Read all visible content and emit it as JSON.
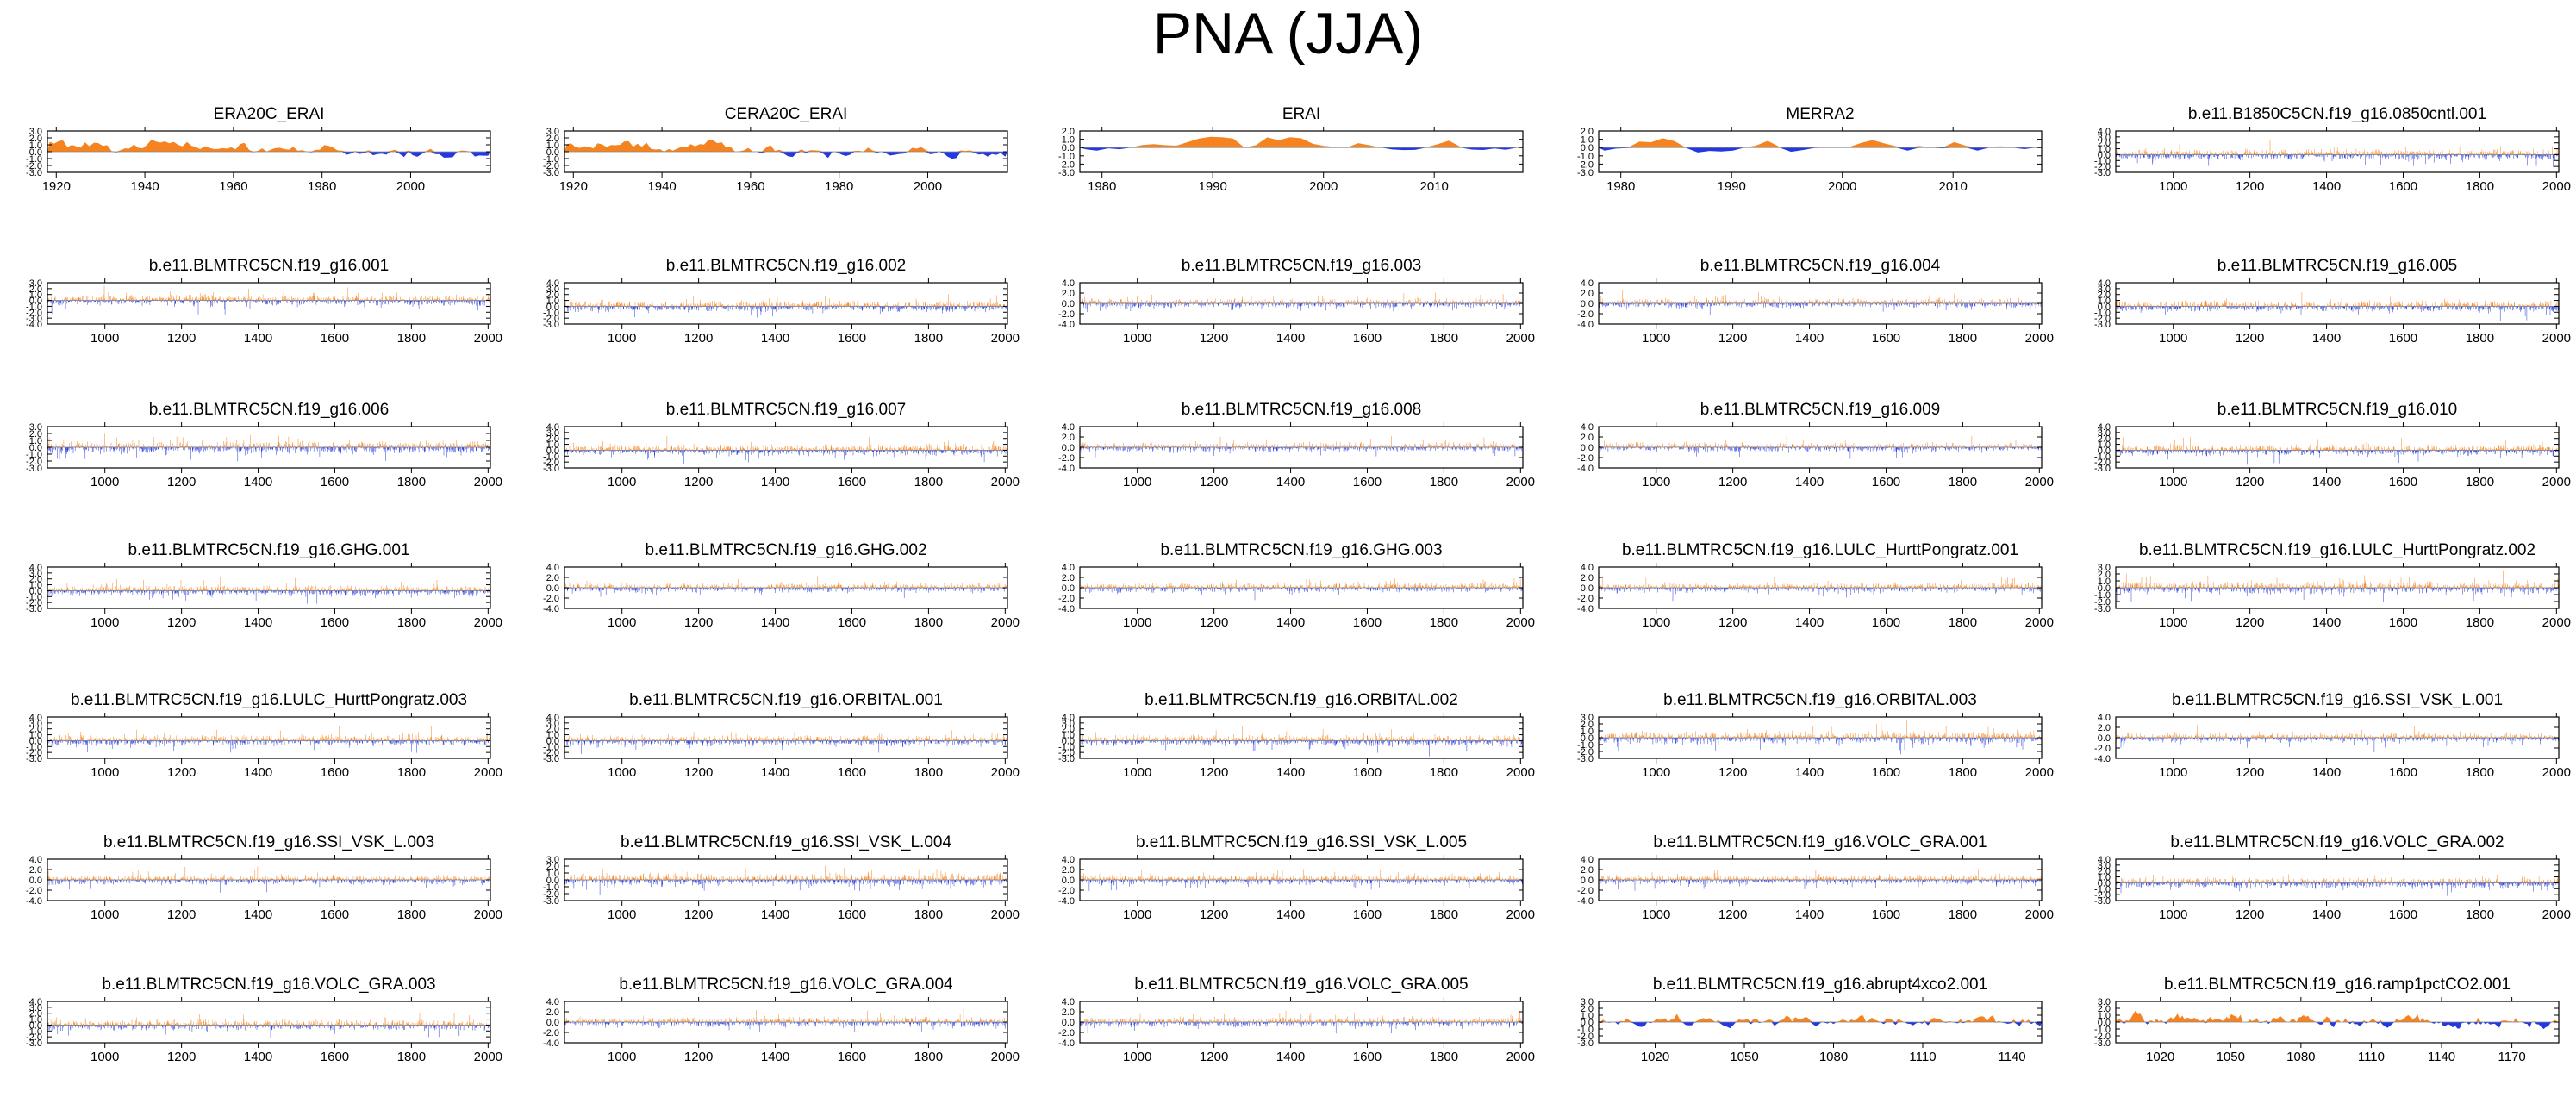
{
  "title": "PNA (JJA)",
  "colors": {
    "positive": "#f5831f",
    "negative": "#2338e0",
    "axis": "#000000",
    "zero_line": "#888888"
  },
  "chart_data": [
    {
      "type": "area",
      "title": "ERA20C_ERAI",
      "xlim": [
        1918,
        2018
      ],
      "ylim": [
        -3,
        3
      ],
      "yticks": [
        "3.0",
        "2.0",
        "1.0",
        "0.0",
        "-1.0",
        "-2.0",
        "-3.0"
      ],
      "xticks": [
        "1920",
        "1940",
        "1960",
        "1980",
        "2000"
      ],
      "n": 100,
      "seed": 101,
      "amp": 1.0,
      "style": "smooth",
      "trend": 1.3
    },
    {
      "type": "area",
      "title": "CERA20C_ERAI",
      "xlim": [
        1918,
        2018
      ],
      "ylim": [
        -3,
        3
      ],
      "yticks": [
        "3.0",
        "2.0",
        "1.0",
        "0.0",
        "-1.0",
        "-2.0",
        "-3.0"
      ],
      "xticks": [
        "1920",
        "1940",
        "1960",
        "1980",
        "2000"
      ],
      "n": 100,
      "seed": 102,
      "amp": 1.0,
      "style": "smooth",
      "trend": 1.1
    },
    {
      "type": "area",
      "title": "ERAI",
      "xlim": [
        1978,
        2018
      ],
      "ylim": [
        -3,
        2
      ],
      "yticks": [
        "2.0",
        "1.0",
        "0.0",
        "-1.0",
        "-2.0",
        "-3.0"
      ],
      "xticks": [
        "1980",
        "1990",
        "2000",
        "2010"
      ],
      "n": 39,
      "seed": 103,
      "amp": 1.1,
      "style": "smooth",
      "trend": 0
    },
    {
      "type": "area",
      "title": "MERRA2",
      "xlim": [
        1978,
        2018
      ],
      "ylim": [
        -3,
        2
      ],
      "yticks": [
        "2.0",
        "1.0",
        "0.0",
        "-1.0",
        "-2.0",
        "-3.0"
      ],
      "xticks": [
        "1980",
        "1990",
        "2000",
        "2010"
      ],
      "n": 38,
      "seed": 104,
      "amp": 1.1,
      "style": "smooth",
      "trend": 0
    },
    {
      "type": "area",
      "title": "b.e11.B1850C5CN.f19_g16.0850cntl.001",
      "xlim": [
        850,
        2006
      ],
      "ylim": [
        -3,
        4
      ],
      "yticks": [
        "4.0",
        "3.0",
        "2.0",
        "1.0",
        "0.0",
        "-1.0",
        "-2.0",
        "-3.0"
      ],
      "xticks": [
        "1000",
        "1200",
        "1400",
        "1600",
        "1800",
        "2000"
      ],
      "n": 1156,
      "seed": 105,
      "amp": 1.0,
      "style": "spiky",
      "trend": 0
    },
    {
      "type": "area",
      "title": "b.e11.BLMTRC5CN.f19_g16.001",
      "xlim": [
        850,
        2006
      ],
      "ylim": [
        -4,
        3
      ],
      "yticks": [
        "3.0",
        "2.0",
        "1.0",
        "0.0",
        "-1.0",
        "-2.0",
        "-3.0",
        "-4.0"
      ],
      "xticks": [
        "1000",
        "1200",
        "1400",
        "1600",
        "1800",
        "2000"
      ],
      "n": 1156,
      "seed": 106,
      "amp": 1.0,
      "style": "spiky",
      "trend": 0
    },
    {
      "type": "area",
      "title": "b.e11.BLMTRC5CN.f19_g16.002",
      "xlim": [
        850,
        2006
      ],
      "ylim": [
        -3,
        4
      ],
      "yticks": [
        "4.0",
        "3.0",
        "2.0",
        "1.0",
        "0.0",
        "-1.0",
        "-2.0",
        "-3.0"
      ],
      "xticks": [
        "1000",
        "1200",
        "1400",
        "1600",
        "1800",
        "2000"
      ],
      "n": 1156,
      "seed": 107,
      "amp": 1.0,
      "style": "spiky",
      "trend": 0
    },
    {
      "type": "area",
      "title": "b.e11.BLMTRC5CN.f19_g16.003",
      "xlim": [
        850,
        2006
      ],
      "ylim": [
        -4,
        4
      ],
      "yticks": [
        "4.0",
        "2.0",
        "0.0",
        "-2.0",
        "-4.0"
      ],
      "xticks": [
        "1000",
        "1200",
        "1400",
        "1600",
        "1800",
        "2000"
      ],
      "n": 1156,
      "seed": 108,
      "amp": 1.0,
      "style": "spiky",
      "trend": 0
    },
    {
      "type": "area",
      "title": "b.e11.BLMTRC5CN.f19_g16.004",
      "xlim": [
        850,
        2006
      ],
      "ylim": [
        -4,
        4
      ],
      "yticks": [
        "4.0",
        "2.0",
        "0.0",
        "-2.0",
        "-4.0"
      ],
      "xticks": [
        "1000",
        "1200",
        "1400",
        "1600",
        "1800",
        "2000"
      ],
      "n": 1156,
      "seed": 109,
      "amp": 1.0,
      "style": "spiky",
      "trend": 0
    },
    {
      "type": "area",
      "title": "b.e11.BLMTRC5CN.f19_g16.005",
      "xlim": [
        850,
        2006
      ],
      "ylim": [
        -3,
        4
      ],
      "yticks": [
        "4.0",
        "3.0",
        "2.0",
        "1.0",
        "0.0",
        "-1.0",
        "-2.0",
        "-3.0"
      ],
      "xticks": [
        "1000",
        "1200",
        "1400",
        "1600",
        "1800",
        "2000"
      ],
      "n": 1156,
      "seed": 110,
      "amp": 1.0,
      "style": "spiky",
      "trend": 0
    },
    {
      "type": "area",
      "title": "b.e11.BLMTRC5CN.f19_g16.006",
      "xlim": [
        850,
        2006
      ],
      "ylim": [
        -3,
        3
      ],
      "yticks": [
        "3.0",
        "2.0",
        "1.0",
        "0.0",
        "-1.0",
        "-2.0",
        "-3.0"
      ],
      "xticks": [
        "1000",
        "1200",
        "1400",
        "1600",
        "1800",
        "2000"
      ],
      "n": 1156,
      "seed": 111,
      "amp": 1.0,
      "style": "spiky",
      "trend": 0
    },
    {
      "type": "area",
      "title": "b.e11.BLMTRC5CN.f19_g16.007",
      "xlim": [
        850,
        2006
      ],
      "ylim": [
        -3,
        4
      ],
      "yticks": [
        "4.0",
        "3.0",
        "2.0",
        "1.0",
        "0.0",
        "-1.0",
        "-2.0",
        "-3.0"
      ],
      "xticks": [
        "1000",
        "1200",
        "1400",
        "1600",
        "1800",
        "2000"
      ],
      "n": 1156,
      "seed": 112,
      "amp": 1.0,
      "style": "spiky",
      "trend": 0
    },
    {
      "type": "area",
      "title": "b.e11.BLMTRC5CN.f19_g16.008",
      "xlim": [
        850,
        2006
      ],
      "ylim": [
        -4,
        4
      ],
      "yticks": [
        "4.0",
        "2.0",
        "0.0",
        "-2.0",
        "-4.0"
      ],
      "xticks": [
        "1000",
        "1200",
        "1400",
        "1600",
        "1800",
        "2000"
      ],
      "n": 1156,
      "seed": 113,
      "amp": 1.0,
      "style": "spiky",
      "trend": 0
    },
    {
      "type": "area",
      "title": "b.e11.BLMTRC5CN.f19_g16.009",
      "xlim": [
        850,
        2006
      ],
      "ylim": [
        -4,
        4
      ],
      "yticks": [
        "4.0",
        "2.0",
        "0.0",
        "-2.0",
        "-4.0"
      ],
      "xticks": [
        "1000",
        "1200",
        "1400",
        "1600",
        "1800",
        "2000"
      ],
      "n": 1156,
      "seed": 114,
      "amp": 1.0,
      "style": "spiky",
      "trend": 0
    },
    {
      "type": "area",
      "title": "b.e11.BLMTRC5CN.f19_g16.010",
      "xlim": [
        850,
        2006
      ],
      "ylim": [
        -3,
        4
      ],
      "yticks": [
        "4.0",
        "3.0",
        "2.0",
        "1.0",
        "0.0",
        "-1.0",
        "-2.0",
        "-3.0"
      ],
      "xticks": [
        "1000",
        "1200",
        "1400",
        "1600",
        "1800",
        "2000"
      ],
      "n": 1156,
      "seed": 115,
      "amp": 1.0,
      "style": "spiky",
      "trend": 0
    },
    {
      "type": "area",
      "title": "b.e11.BLMTRC5CN.f19_g16.GHG.001",
      "xlim": [
        850,
        2006
      ],
      "ylim": [
        -3,
        4
      ],
      "yticks": [
        "4.0",
        "3.0",
        "2.0",
        "1.0",
        "0.0",
        "-1.0",
        "-2.0",
        "-3.0"
      ],
      "xticks": [
        "1000",
        "1200",
        "1400",
        "1600",
        "1800",
        "2000"
      ],
      "n": 1156,
      "seed": 116,
      "amp": 1.0,
      "style": "spiky",
      "trend": 0
    },
    {
      "type": "area",
      "title": "b.e11.BLMTRC5CN.f19_g16.GHG.002",
      "xlim": [
        850,
        2006
      ],
      "ylim": [
        -4,
        4
      ],
      "yticks": [
        "4.0",
        "2.0",
        "0.0",
        "-2.0",
        "-4.0"
      ],
      "xticks": [
        "1000",
        "1200",
        "1400",
        "1600",
        "1800",
        "2000"
      ],
      "n": 1156,
      "seed": 117,
      "amp": 1.0,
      "style": "spiky",
      "trend": 0
    },
    {
      "type": "area",
      "title": "b.e11.BLMTRC5CN.f19_g16.GHG.003",
      "xlim": [
        850,
        2006
      ],
      "ylim": [
        -4,
        4
      ],
      "yticks": [
        "4.0",
        "2.0",
        "0.0",
        "-2.0",
        "-4.0"
      ],
      "xticks": [
        "1000",
        "1200",
        "1400",
        "1600",
        "1800",
        "2000"
      ],
      "n": 1156,
      "seed": 118,
      "amp": 1.0,
      "style": "spiky",
      "trend": 0
    },
    {
      "type": "area",
      "title": "b.e11.BLMTRC5CN.f19_g16.LULC_HurttPongratz.001",
      "xlim": [
        850,
        2006
      ],
      "ylim": [
        -4,
        4
      ],
      "yticks": [
        "4.0",
        "2.0",
        "0.0",
        "-2.0",
        "-4.0"
      ],
      "xticks": [
        "1000",
        "1200",
        "1400",
        "1600",
        "1800",
        "2000"
      ],
      "n": 1156,
      "seed": 119,
      "amp": 1.0,
      "style": "spiky",
      "trend": 0
    },
    {
      "type": "area",
      "title": "b.e11.BLMTRC5CN.f19_g16.LULC_HurttPongratz.002",
      "xlim": [
        850,
        2006
      ],
      "ylim": [
        -3,
        3
      ],
      "yticks": [
        "3.0",
        "2.0",
        "1.0",
        "0.0",
        "-1.0",
        "-2.0",
        "-3.0"
      ],
      "xticks": [
        "1000",
        "1200",
        "1400",
        "1600",
        "1800",
        "2000"
      ],
      "n": 1156,
      "seed": 120,
      "amp": 1.0,
      "style": "spiky",
      "trend": 0
    },
    {
      "type": "area",
      "title": "b.e11.BLMTRC5CN.f19_g16.LULC_HurttPongratz.003",
      "xlim": [
        850,
        2006
      ],
      "ylim": [
        -3,
        4
      ],
      "yticks": [
        "4.0",
        "3.0",
        "2.0",
        "1.0",
        "0.0",
        "-1.0",
        "-2.0",
        "-3.0"
      ],
      "xticks": [
        "1000",
        "1200",
        "1400",
        "1600",
        "1800",
        "2000"
      ],
      "n": 1156,
      "seed": 121,
      "amp": 1.0,
      "style": "spiky",
      "trend": 0
    },
    {
      "type": "area",
      "title": "b.e11.BLMTRC5CN.f19_g16.ORBITAL.001",
      "xlim": [
        850,
        2006
      ],
      "ylim": [
        -3,
        4
      ],
      "yticks": [
        "4.0",
        "3.0",
        "2.0",
        "1.0",
        "0.0",
        "-1.0",
        "-2.0",
        "-3.0"
      ],
      "xticks": [
        "1000",
        "1200",
        "1400",
        "1600",
        "1800",
        "2000"
      ],
      "n": 1156,
      "seed": 122,
      "amp": 1.0,
      "style": "spiky",
      "trend": 0
    },
    {
      "type": "area",
      "title": "b.e11.BLMTRC5CN.f19_g16.ORBITAL.002",
      "xlim": [
        850,
        2006
      ],
      "ylim": [
        -3,
        4
      ],
      "yticks": [
        "4.0",
        "3.0",
        "2.0",
        "1.0",
        "0.0",
        "-1.0",
        "-2.0",
        "-3.0"
      ],
      "xticks": [
        "1000",
        "1200",
        "1400",
        "1600",
        "1800",
        "2000"
      ],
      "n": 1156,
      "seed": 123,
      "amp": 1.0,
      "style": "spiky",
      "trend": 0
    },
    {
      "type": "area",
      "title": "b.e11.BLMTRC5CN.f19_g16.ORBITAL.003",
      "xlim": [
        850,
        2006
      ],
      "ylim": [
        -3,
        3
      ],
      "yticks": [
        "3.0",
        "2.0",
        "1.0",
        "0.0",
        "-1.0",
        "-2.0",
        "-3.0"
      ],
      "xticks": [
        "1000",
        "1200",
        "1400",
        "1600",
        "1800",
        "2000"
      ],
      "n": 1156,
      "seed": 124,
      "amp": 1.0,
      "style": "spiky",
      "trend": 0
    },
    {
      "type": "area",
      "title": "b.e11.BLMTRC5CN.f19_g16.SSI_VSK_L.001",
      "xlim": [
        850,
        2006
      ],
      "ylim": [
        -4,
        4
      ],
      "yticks": [
        "4.0",
        "2.0",
        "0.0",
        "-2.0",
        "-4.0"
      ],
      "xticks": [
        "1000",
        "1200",
        "1400",
        "1600",
        "1800",
        "2000"
      ],
      "n": 1156,
      "seed": 125,
      "amp": 1.0,
      "style": "spiky",
      "trend": 0
    },
    {
      "type": "area",
      "title": "b.e11.BLMTRC5CN.f19_g16.SSI_VSK_L.003",
      "xlim": [
        850,
        2006
      ],
      "ylim": [
        -4,
        4
      ],
      "yticks": [
        "4.0",
        "2.0",
        "0.0",
        "-2.0",
        "-4.0"
      ],
      "xticks": [
        "1000",
        "1200",
        "1400",
        "1600",
        "1800",
        "2000"
      ],
      "n": 1156,
      "seed": 126,
      "amp": 1.0,
      "style": "spiky",
      "trend": 0
    },
    {
      "type": "area",
      "title": "b.e11.BLMTRC5CN.f19_g16.SSI_VSK_L.004",
      "xlim": [
        850,
        2006
      ],
      "ylim": [
        -3,
        3
      ],
      "yticks": [
        "3.0",
        "2.0",
        "1.0",
        "0.0",
        "-1.0",
        "-2.0",
        "-3.0"
      ],
      "xticks": [
        "1000",
        "1200",
        "1400",
        "1600",
        "1800",
        "2000"
      ],
      "n": 1156,
      "seed": 127,
      "amp": 1.0,
      "style": "spiky",
      "trend": 0
    },
    {
      "type": "area",
      "title": "b.e11.BLMTRC5CN.f19_g16.SSI_VSK_L.005",
      "xlim": [
        850,
        2006
      ],
      "ylim": [
        -4,
        4
      ],
      "yticks": [
        "4.0",
        "2.0",
        "0.0",
        "-2.0",
        "-4.0"
      ],
      "xticks": [
        "1000",
        "1200",
        "1400",
        "1600",
        "1800",
        "2000"
      ],
      "n": 1156,
      "seed": 128,
      "amp": 1.0,
      "style": "spiky",
      "trend": 0
    },
    {
      "type": "area",
      "title": "b.e11.BLMTRC5CN.f19_g16.VOLC_GRA.001",
      "xlim": [
        850,
        2006
      ],
      "ylim": [
        -4,
        4
      ],
      "yticks": [
        "4.0",
        "2.0",
        "0.0",
        "-2.0",
        "-4.0"
      ],
      "xticks": [
        "1000",
        "1200",
        "1400",
        "1600",
        "1800",
        "2000"
      ],
      "n": 1156,
      "seed": 129,
      "amp": 1.0,
      "style": "spiky",
      "trend": 0
    },
    {
      "type": "area",
      "title": "b.e11.BLMTRC5CN.f19_g16.VOLC_GRA.002",
      "xlim": [
        850,
        2006
      ],
      "ylim": [
        -3,
        4
      ],
      "yticks": [
        "4.0",
        "3.0",
        "2.0",
        "1.0",
        "0.0",
        "-1.0",
        "-2.0",
        "-3.0"
      ],
      "xticks": [
        "1000",
        "1200",
        "1400",
        "1600",
        "1800",
        "2000"
      ],
      "n": 1156,
      "seed": 130,
      "amp": 1.0,
      "style": "spiky",
      "trend": 0
    },
    {
      "type": "area",
      "title": "b.e11.BLMTRC5CN.f19_g16.VOLC_GRA.003",
      "xlim": [
        850,
        2006
      ],
      "ylim": [
        -3,
        4
      ],
      "yticks": [
        "4.0",
        "3.0",
        "2.0",
        "1.0",
        "0.0",
        "-1.0",
        "-2.0",
        "-3.0"
      ],
      "xticks": [
        "1000",
        "1200",
        "1400",
        "1600",
        "1800",
        "2000"
      ],
      "n": 1156,
      "seed": 131,
      "amp": 1.0,
      "style": "spiky",
      "trend": 0
    },
    {
      "type": "area",
      "title": "b.e11.BLMTRC5CN.f19_g16.VOLC_GRA.004",
      "xlim": [
        850,
        2006
      ],
      "ylim": [
        -4,
        4
      ],
      "yticks": [
        "4.0",
        "2.0",
        "0.0",
        "-2.0",
        "-4.0"
      ],
      "xticks": [
        "1000",
        "1200",
        "1400",
        "1600",
        "1800",
        "2000"
      ],
      "n": 1156,
      "seed": 132,
      "amp": 1.0,
      "style": "spiky",
      "trend": 0
    },
    {
      "type": "area",
      "title": "b.e11.BLMTRC5CN.f19_g16.VOLC_GRA.005",
      "xlim": [
        850,
        2006
      ],
      "ylim": [
        -4,
        4
      ],
      "yticks": [
        "4.0",
        "2.0",
        "0.0",
        "-2.0",
        "-4.0"
      ],
      "xticks": [
        "1000",
        "1200",
        "1400",
        "1600",
        "1800",
        "2000"
      ],
      "n": 1156,
      "seed": 133,
      "amp": 1.0,
      "style": "spiky",
      "trend": 0
    },
    {
      "type": "area",
      "title": "b.e11.BLMTRC5CN.f19_g16.abrupt4xco2.001",
      "xlim": [
        1001,
        1150
      ],
      "ylim": [
        -3,
        3
      ],
      "yticks": [
        "3.0",
        "2.0",
        "1.0",
        "0.0",
        "-1.0",
        "-2.0",
        "-3.0"
      ],
      "xticks": [
        "1020",
        "1050",
        "1080",
        "1110",
        "1140"
      ],
      "n": 150,
      "seed": 134,
      "amp": 1.0,
      "style": "smooth",
      "trend": 0
    },
    {
      "type": "area",
      "title": "b.e11.BLMTRC5CN.f19_g16.ramp1pctCO2.001",
      "xlim": [
        1001,
        1190
      ],
      "ylim": [
        -3,
        3
      ],
      "yticks": [
        "3.0",
        "2.0",
        "1.0",
        "0.0",
        "-1.0",
        "-2.0",
        "-3.0"
      ],
      "xticks": [
        "1020",
        "1050",
        "1080",
        "1110",
        "1140",
        "1170"
      ],
      "n": 190,
      "seed": 135,
      "amp": 1.0,
      "style": "smooth",
      "trend": 0.6
    }
  ]
}
